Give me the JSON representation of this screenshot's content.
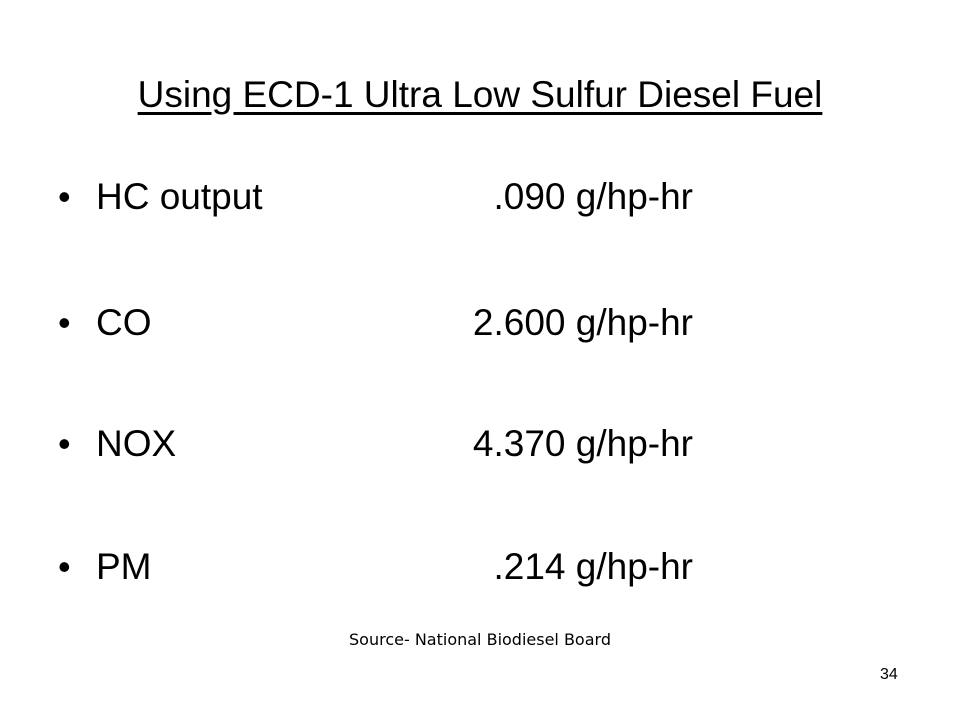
{
  "title": "Using ECD-1 Ultra Low Sulfur Diesel Fuel",
  "items": [
    {
      "label": "HC output",
      "value": ".090 g/hp-hr"
    },
    {
      "label": "CO",
      "value": "2.600 g/hp-hr"
    },
    {
      "label": "NOX",
      "value": "4.370 g/hp-hr"
    },
    {
      "label": "PM",
      "value": ".214 g/hp-hr"
    }
  ],
  "source": "Source- National Biodiesel Board",
  "page_number": "34"
}
